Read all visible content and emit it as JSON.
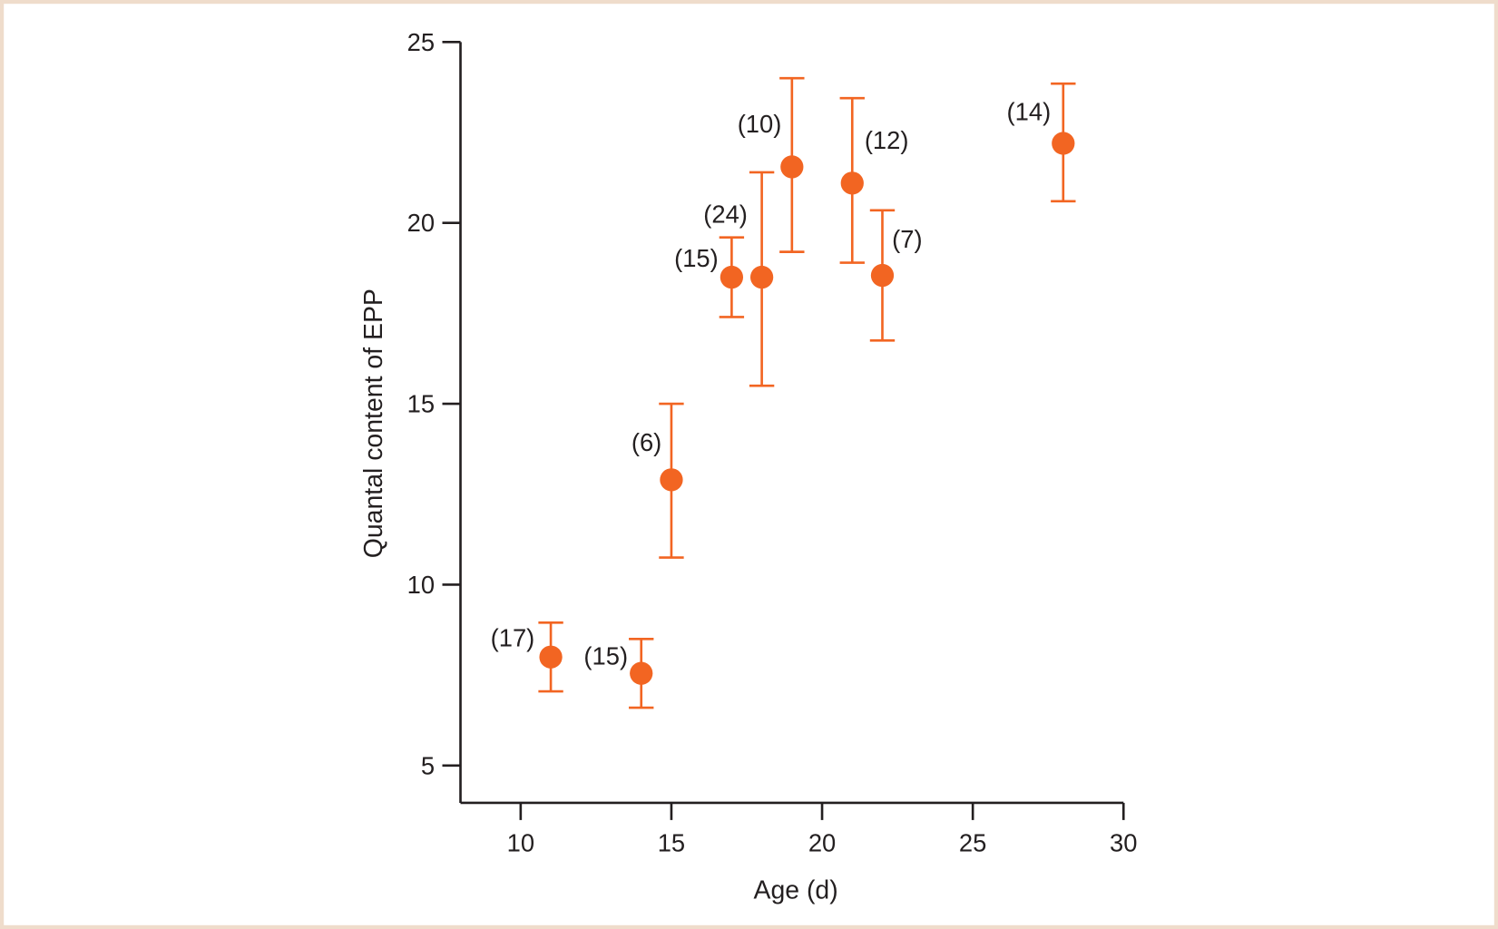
{
  "chart_data": {
    "type": "scatter",
    "title": "",
    "xlabel": "Age (d)",
    "ylabel": "Quantal content of EPP",
    "xlim": [
      8,
      30
    ],
    "ylim": [
      4,
      25
    ],
    "xticks": [
      10,
      15,
      20,
      25,
      30
    ],
    "yticks": [
      5,
      10,
      15,
      20,
      25
    ],
    "grid": false,
    "legend": "none",
    "error_bars": true,
    "points": [
      {
        "x": 11,
        "y": 8.0,
        "err_low": 7.05,
        "err_high": 8.95,
        "label": "(17)"
      },
      {
        "x": 14,
        "y": 7.55,
        "err_low": 6.6,
        "err_high": 8.5,
        "label": "(15)"
      },
      {
        "x": 15,
        "y": 12.9,
        "err_low": 10.75,
        "err_high": 15.0,
        "label": "(6)"
      },
      {
        "x": 17,
        "y": 18.5,
        "err_low": 17.4,
        "err_high": 19.6,
        "label": "(15)"
      },
      {
        "x": 18,
        "y": 18.5,
        "err_low": 15.5,
        "err_high": 21.4,
        "label": "(24)"
      },
      {
        "x": 19,
        "y": 21.55,
        "err_low": 19.2,
        "err_high": 24.0,
        "label": "(10)"
      },
      {
        "x": 21,
        "y": 21.1,
        "err_low": 18.9,
        "err_high": 23.45,
        "label": "(12)"
      },
      {
        "x": 22,
        "y": 18.55,
        "err_low": 16.75,
        "err_high": 20.35,
        "label": "(7)"
      },
      {
        "x": 28,
        "y": 22.2,
        "err_low": 20.6,
        "err_high": 23.85,
        "label": "(14)"
      }
    ],
    "colors": {
      "marker": "#f26522",
      "axis": "#231f20",
      "frame": "#efdccb"
    }
  }
}
